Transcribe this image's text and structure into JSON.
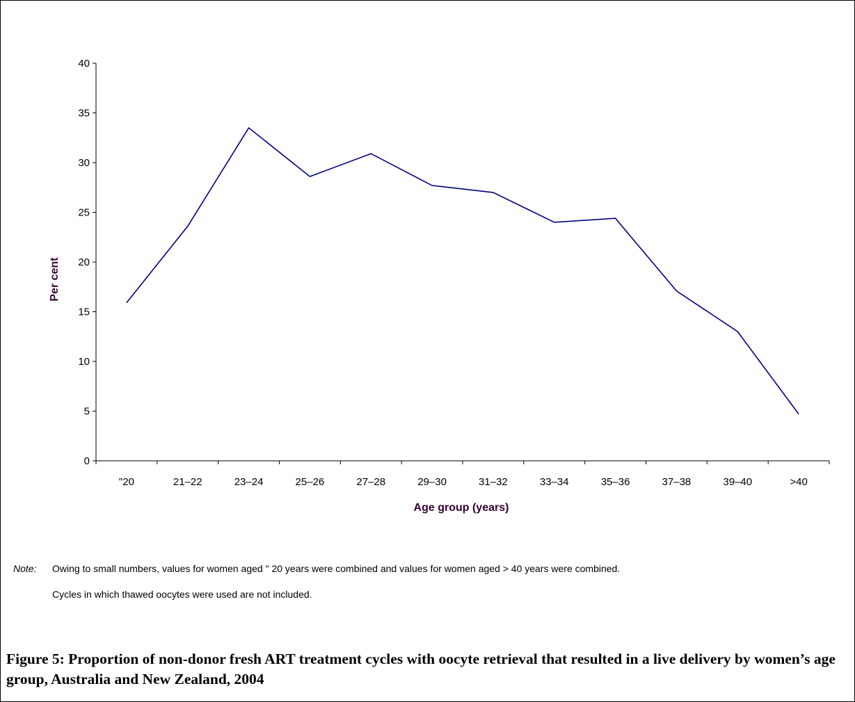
{
  "chart_data": {
    "type": "line",
    "categories": [
      "\"20",
      "21–22",
      "23–24",
      "25–26",
      "27–28",
      "29–30",
      "31–32",
      "33–34",
      "35–36",
      "37–38",
      "39–40",
      ">40"
    ],
    "series": [
      {
        "values": [
          15.9,
          23.6,
          33.5,
          28.6,
          30.9,
          27.7,
          27.0,
          24.0,
          24.4,
          17.1,
          13.0,
          4.7
        ]
      }
    ],
    "title": "",
    "xlabel": "Age group (years)",
    "ylabel": "Per cent",
    "ylim": [
      0,
      40
    ],
    "yticks": [
      0,
      5,
      10,
      15,
      20,
      25,
      30,
      35,
      40
    ],
    "grid": false,
    "legend": "none",
    "line_color": "#000080",
    "axis_label_color": "#330033"
  },
  "note": {
    "label": "Note:",
    "line1": "Owing to small numbers, values for women aged \" 20 years were combined and values for women aged > 40 years were combined.",
    "line2": "Cycles in which thawed oocytes were used are not included."
  },
  "caption": "Figure 5: Proportion of non-donor fresh ART treatment cycles with oocyte retrieval that resulted in a live delivery by women’s age group, Australia and New Zealand, 2004"
}
